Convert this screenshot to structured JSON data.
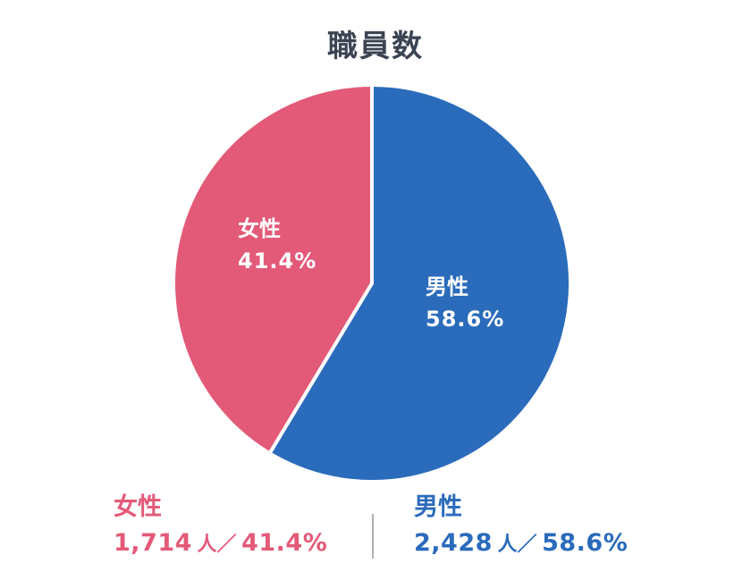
{
  "title": "職員数",
  "colors": {
    "female": "#e35a78",
    "male": "#2a6bbb",
    "title": "#3c4453",
    "divider": "#b0b0b0"
  },
  "slices": {
    "female": {
      "label": "女性",
      "pct": "41.4%"
    },
    "male": {
      "label": "男性",
      "pct": "58.6%"
    }
  },
  "legend": {
    "female": {
      "label": "女性",
      "count": "1,714",
      "unit": "人",
      "sep": "／",
      "pct": "41.4%"
    },
    "male": {
      "label": "男性",
      "count": "2,428",
      "unit": "人",
      "sep": "／",
      "pct": "58.6%"
    }
  },
  "chart_data": {
    "type": "pie",
    "title": "職員数",
    "categories": [
      "男性",
      "女性"
    ],
    "values": [
      2428,
      1714
    ],
    "percentages": [
      58.6,
      41.4
    ],
    "units": "人",
    "colors": [
      "#2a6bbb",
      "#e35a78"
    ],
    "start_angle": "12 o'clock, clockwise",
    "legend_position": "bottom"
  }
}
